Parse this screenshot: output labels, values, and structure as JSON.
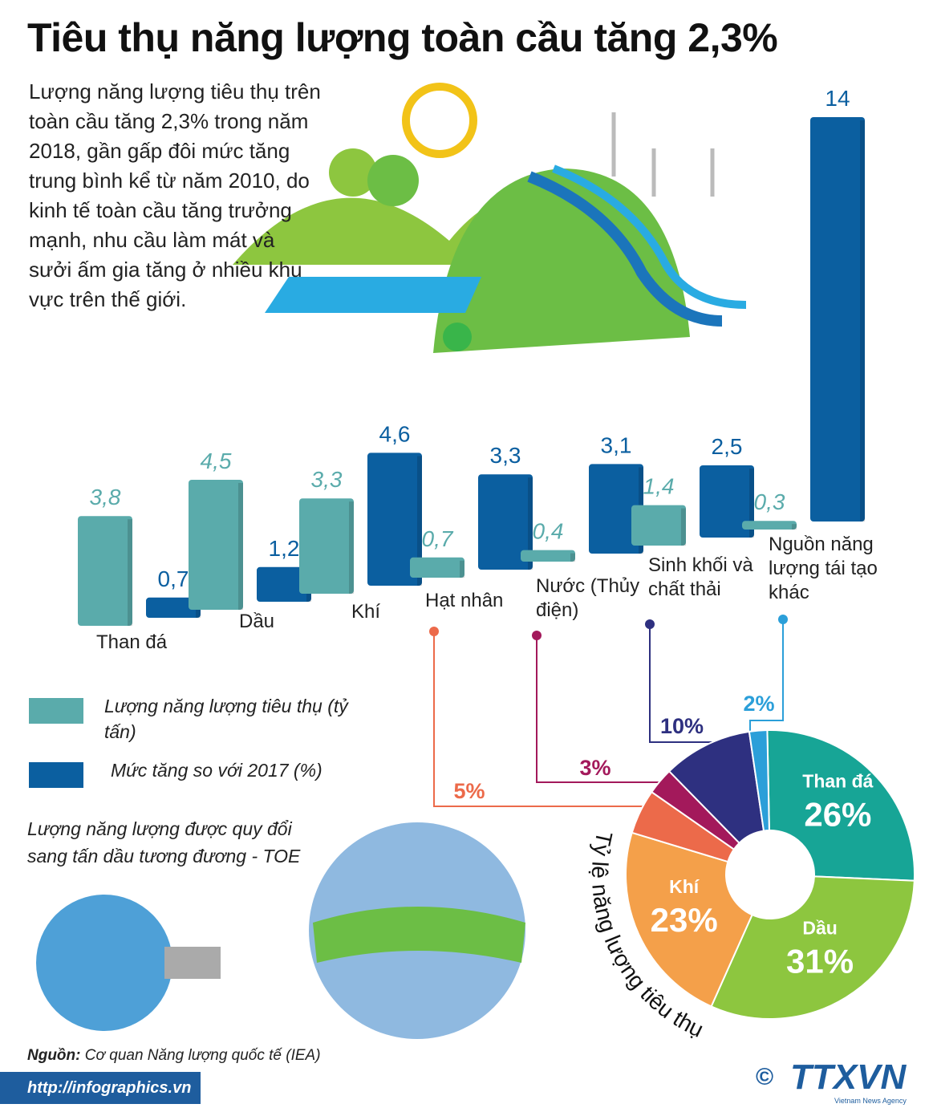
{
  "header": {
    "title": "Tiêu thụ năng lượng toàn cầu tăng 2,3%"
  },
  "intro": "Lượng năng lượng tiêu thụ trên toàn cầu tăng 2,3% trong năm 2018, gần gấp đôi mức tăng trung bình kể từ năm 2010, do kinh tế toàn cầu tăng trưởng mạnh, nhu cầu làm mát và sưởi ấm gia tăng ở nhiều khu vực trên thế giới.",
  "chart_data": [
    {
      "type": "bar",
      "categories": [
        "Than đá",
        "Dầu",
        "Khí",
        "Hạt nhân",
        "Nước (Thủy điện)",
        "Sinh khối và chất thải",
        "Nguồn năng lượng tái tạo khác"
      ],
      "series": [
        {
          "name": "Lượng năng lượng tiêu thụ (tỷ tấn)",
          "color": "#5aabab",
          "values": [
            3.8,
            4.5,
            3.3,
            0.7,
            0.4,
            1.4,
            0.3
          ],
          "value_labels": [
            "3,8",
            "4,5",
            "3,3",
            "0,7",
            "0,4",
            "1,4",
            "0,3"
          ]
        },
        {
          "name": "Mức tăng so với 2017 (%)",
          "color": "#0b5fa0",
          "values": [
            0.7,
            1.2,
            4.6,
            3.3,
            3.1,
            2.5,
            14
          ],
          "value_labels": [
            "0,7",
            "1,2",
            "4,6",
            "3,3",
            "3,1",
            "2,5",
            "14"
          ]
        }
      ]
    },
    {
      "type": "pie",
      "title": "Tỷ lệ năng lượng tiêu thụ",
      "categories": [
        "Than đá",
        "Dầu",
        "Khí",
        null,
        null,
        null,
        null
      ],
      "values": [
        26,
        31,
        23,
        5,
        3,
        10,
        2
      ],
      "value_labels": [
        "26%",
        "31%",
        "23%",
        "5%",
        "3%",
        "10%",
        "2%"
      ],
      "colors": [
        "#17a596",
        "#8dc63f",
        "#f4a04a",
        "#ec6a4a",
        "#a3195b",
        "#2e3080",
        "#2b9fd9"
      ]
    }
  ],
  "note": "Lượng năng lượng được quy đổi sang tấn dầu tương đương - TOE",
  "footer": {
    "source_label": "Nguồn:",
    "source": "Cơ quan Năng lượng quốc tế (IEA)",
    "url": "http://infographics.vn",
    "copyright": "©",
    "logo": "TTXVN",
    "agency": "Vietnam News Agency"
  }
}
